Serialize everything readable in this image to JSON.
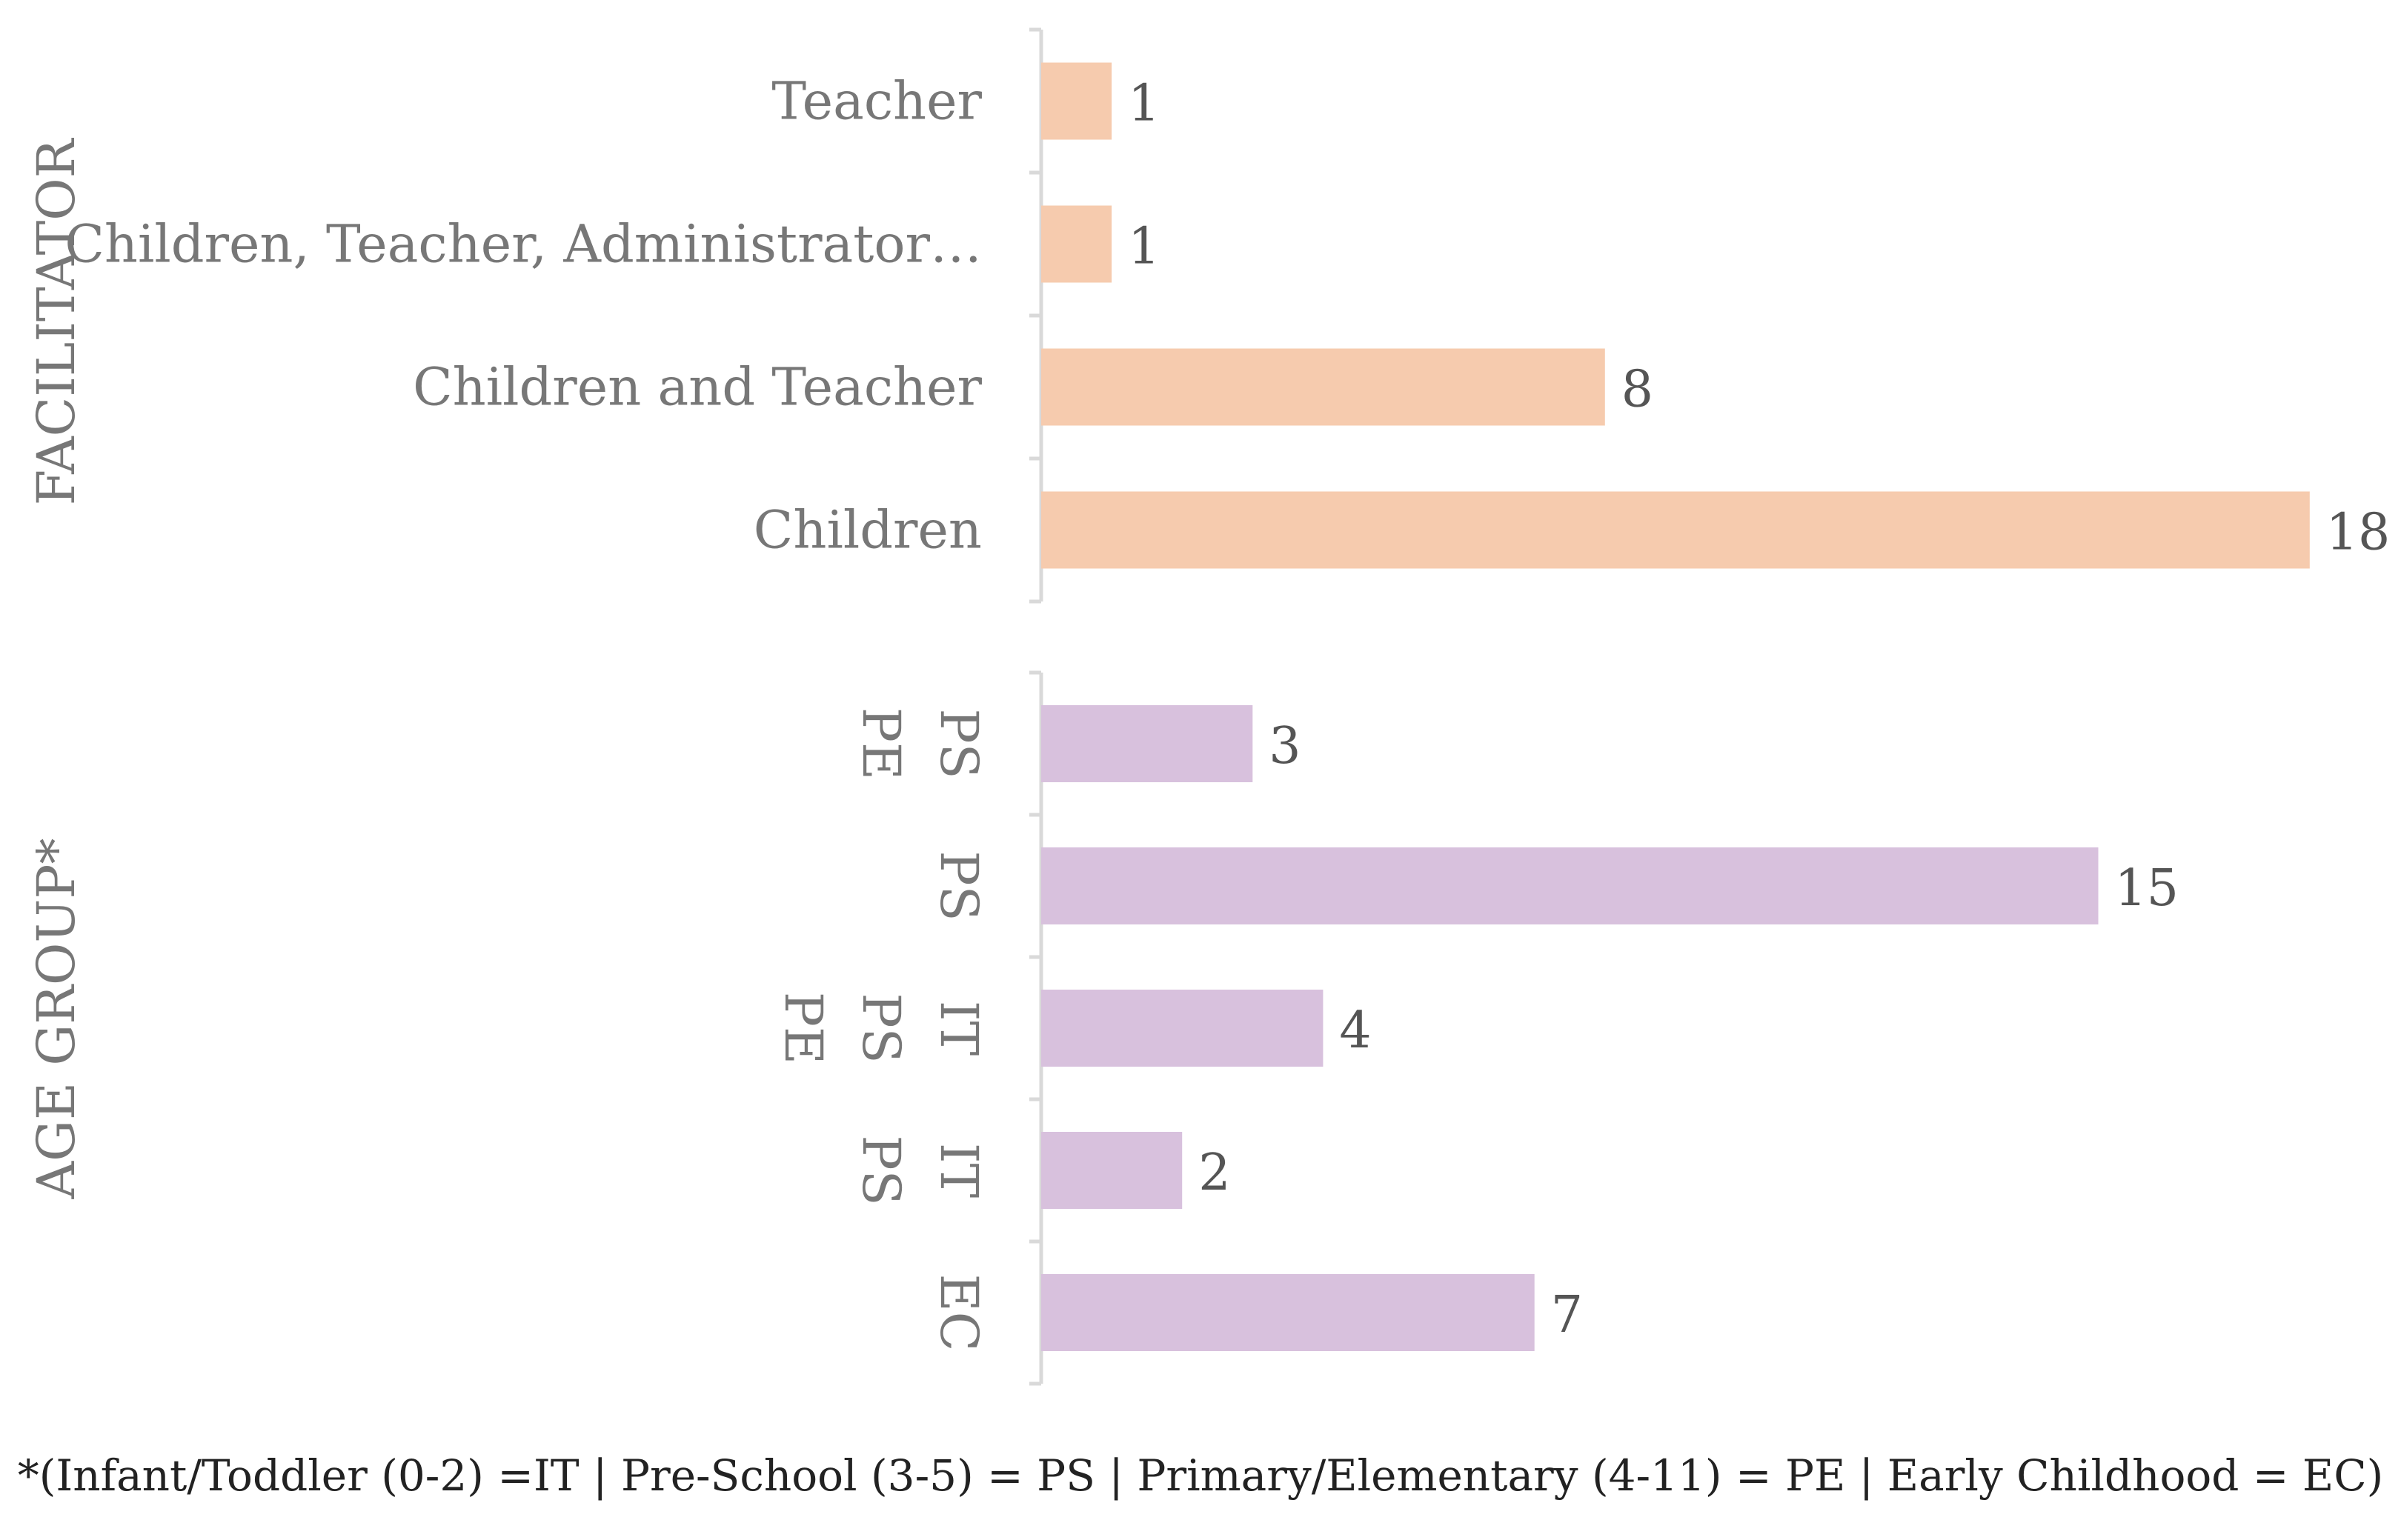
{
  "chart_data": [
    {
      "type": "bar",
      "orientation": "horizontal",
      "group_label": "FACILITATOR",
      "categories": [
        "Teacher",
        "Children, Teacher, Administrator…",
        "Children and Teacher",
        "Children"
      ],
      "values": [
        1,
        1,
        8,
        18
      ],
      "data_labels": [
        "1",
        "1",
        "8",
        "18"
      ],
      "color": "#F6CBAE"
    },
    {
      "type": "bar",
      "orientation": "horizontal",
      "group_label": "AGE GROUP*",
      "categories": [
        {
          "lines": [
            "PS",
            "PE"
          ]
        },
        {
          "lines": [
            "PS"
          ]
        },
        {
          "lines": [
            "IT",
            "PS",
            "PE"
          ]
        },
        {
          "lines": [
            "IT",
            "PS"
          ]
        },
        {
          "lines": [
            "EC"
          ]
        }
      ],
      "values": [
        3,
        15,
        4,
        2,
        7
      ],
      "data_labels": [
        "3",
        "15",
        "4",
        "2",
        "7"
      ],
      "color": "#D8C1DD"
    }
  ],
  "footnote": "*(Infant/Toddler (0-2) =IT | Pre-School (3-5) = PS | Primary/Elementary (4-11) = PE | Early Childhood = EC)"
}
